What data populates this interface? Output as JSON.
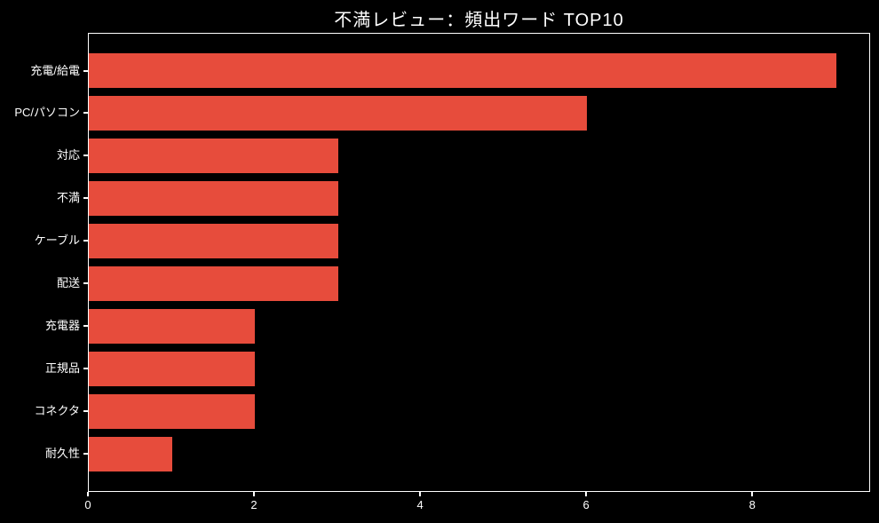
{
  "figure": {
    "background": "#000000",
    "text_color": "#ffffff",
    "spine_color": "#ffffff"
  },
  "chart_data": {
    "type": "bar",
    "orientation": "horizontal",
    "title": "不満レビュー：頻出ワード TOP10",
    "categories": [
      "充電/給電",
      "PC/パソコン",
      "対応",
      "不満",
      "ケーブル",
      "配送",
      "充電器",
      "正規品",
      "コネクタ",
      "耐久性"
    ],
    "values": [
      9,
      6,
      3,
      3,
      3,
      3,
      2,
      2,
      2,
      1
    ],
    "bar_color": "#e74c3c",
    "x_ticks": [
      0,
      2,
      4,
      6,
      8
    ],
    "x_tick_labels": [
      "0",
      "2",
      "4",
      "6",
      "8"
    ],
    "xlim": [
      0,
      9.42
    ],
    "xlabel": "",
    "ylabel": "",
    "grid": false,
    "legend": null,
    "value_axis": "x",
    "category_order": "top-to-bottom"
  }
}
